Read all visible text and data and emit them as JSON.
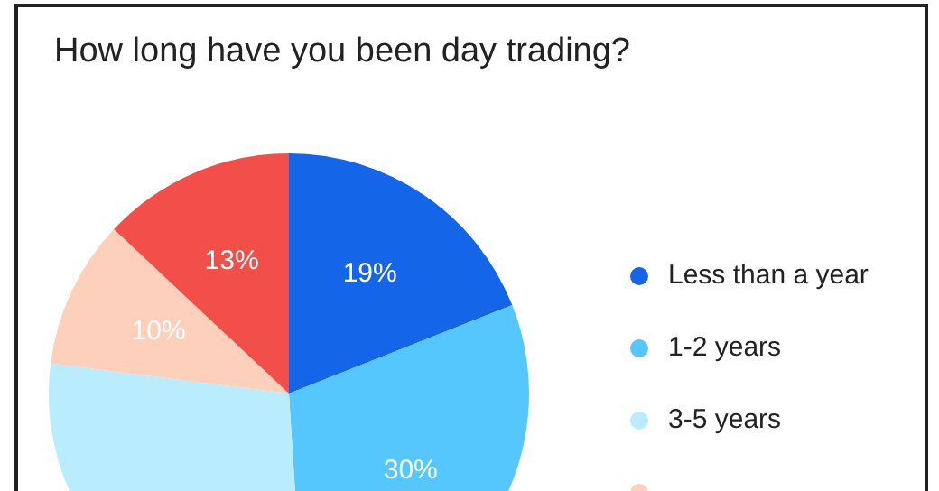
{
  "chart_data": {
    "type": "pie",
    "title": "How long have you been day trading?",
    "categories": [
      "Less than a year",
      "1-2 years",
      "3-5 years",
      null,
      null
    ],
    "values": [
      19,
      30,
      28,
      10,
      13
    ],
    "colors": [
      "#1565e8",
      "#55c7fd",
      "#b9ecfd",
      "#fdd0bb",
      "#f24f4a"
    ],
    "value_labels": [
      "19%",
      "30%",
      null,
      "10%",
      "13%"
    ],
    "legend": "right"
  }
}
